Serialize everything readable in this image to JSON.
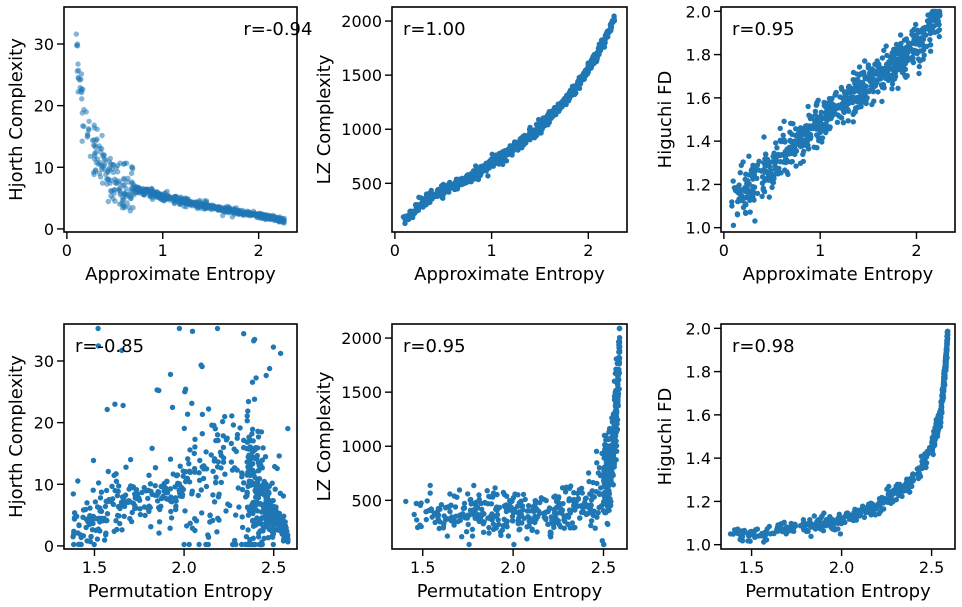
{
  "chart_data": [
    {
      "type": "scatter",
      "xlabel": "Approximate Entropy",
      "ylabel": "Hjorth Complexity",
      "annotation": "r=-0.94",
      "annotation_pos": "top-right",
      "xlim": [
        -0.03,
        2.4
      ],
      "ylim": [
        -0.5,
        36
      ],
      "xticks": [
        0,
        1,
        2
      ],
      "yticks": [
        0,
        10,
        20,
        30
      ],
      "marker_alpha": 0.55,
      "series": [
        {
          "color": "#1f77b4",
          "shape": "power-decay",
          "x": [
            0.08,
            0.1,
            0.12,
            0.15,
            0.2,
            0.25,
            0.3,
            0.35,
            0.4,
            0.45,
            0.5,
            0.6,
            0.8,
            1.0,
            1.2,
            1.5,
            1.8,
            2.0,
            2.2,
            2.27
          ],
          "y": [
            34.5,
            29,
            26,
            22,
            17,
            14,
            12,
            11,
            10,
            8.5,
            7.5,
            7,
            6.2,
            5.4,
            4.5,
            3.6,
            2.7,
            2.2,
            1.6,
            1.3
          ]
        }
      ]
    },
    {
      "type": "scatter",
      "xlabel": "Approximate Entropy",
      "ylabel": "LZ Complexity",
      "annotation": "r=1.00",
      "annotation_pos": "top-left",
      "xlim": [
        -0.03,
        2.4
      ],
      "ylim": [
        50,
        2130
      ],
      "xticks": [
        0,
        1,
        2
      ],
      "yticks": [
        500,
        1000,
        1500,
        2000
      ],
      "marker_alpha": 1,
      "series": [
        {
          "color": "#1f77b4",
          "shape": "convex-rise",
          "x": [
            0.08,
            0.3,
            0.5,
            0.8,
            1.0,
            1.2,
            1.5,
            1.8,
            2.0,
            2.2,
            2.27
          ],
          "y": [
            140,
            330,
            440,
            560,
            690,
            800,
            1020,
            1300,
            1550,
            1880,
            2050
          ]
        }
      ]
    },
    {
      "type": "scatter",
      "xlabel": "Approximate Entropy",
      "ylabel": "Higuchi FD",
      "annotation": "r=0.95",
      "annotation_pos": "top-left",
      "xlim": [
        -0.03,
        2.4
      ],
      "ylim": [
        0.98,
        2.02
      ],
      "xticks": [
        0,
        1,
        2
      ],
      "yticks": [
        1.0,
        1.2,
        1.4,
        1.6,
        1.8,
        2.0
      ],
      "marker_alpha": 1,
      "series": [
        {
          "color": "#1f77b4",
          "shape": "broad-band",
          "x": [
            0.08,
            0.3,
            0.5,
            0.8,
            1.0,
            1.3,
            1.6,
            1.9,
            2.1,
            2.25
          ],
          "y": [
            1.1,
            1.2,
            1.3,
            1.4,
            1.5,
            1.6,
            1.7,
            1.8,
            1.9,
            1.98
          ]
        }
      ]
    },
    {
      "type": "scatter",
      "xlabel": "Permutation Entropy",
      "ylabel": "Hjorth Complexity",
      "annotation": "r=-0.85",
      "annotation_pos": "top-left",
      "xlim": [
        1.33,
        2.63
      ],
      "ylim": [
        -0.5,
        36
      ],
      "xticks": [
        1.5,
        2.0,
        2.5
      ],
      "yticks": [
        0,
        10,
        20,
        30
      ],
      "marker_alpha": 1,
      "series": [
        {
          "color": "#1f77b4",
          "shape": "rise-peak-drop",
          "x": [
            1.38,
            1.5,
            1.7,
            1.9,
            2.1,
            2.25,
            2.35,
            2.45,
            2.55,
            2.58
          ],
          "y": [
            2.5,
            5,
            7,
            8.5,
            10,
            12,
            10,
            7,
            3,
            1.5
          ]
        }
      ]
    },
    {
      "type": "scatter",
      "xlabel": "Permutation Entropy",
      "ylabel": "LZ Complexity",
      "annotation": "r=0.95",
      "annotation_pos": "top-left",
      "xlim": [
        1.33,
        2.63
      ],
      "ylim": [
        50,
        2130
      ],
      "xticks": [
        1.5,
        2.0,
        2.5
      ],
      "yticks": [
        500,
        1000,
        1500,
        2000
      ],
      "marker_alpha": 1,
      "series": [
        {
          "color": "#1f77b4",
          "shape": "flat-then-vertical",
          "x": [
            1.38,
            1.6,
            1.8,
            2.0,
            2.2,
            2.4,
            2.5,
            2.55,
            2.58,
            2.59
          ],
          "y": [
            380,
            380,
            370,
            360,
            380,
            450,
            600,
            900,
            1500,
            2050
          ]
        }
      ]
    },
    {
      "type": "scatter",
      "xlabel": "Permutation Entropy",
      "ylabel": "Higuchi FD",
      "annotation": "r=0.98",
      "annotation_pos": "top-left",
      "xlim": [
        1.33,
        2.63
      ],
      "ylim": [
        0.98,
        2.02
      ],
      "xticks": [
        1.5,
        2.0,
        2.5
      ],
      "yticks": [
        1.0,
        1.2,
        1.4,
        1.6,
        1.8,
        2.0
      ],
      "marker_alpha": 1,
      "series": [
        {
          "color": "#1f77b4",
          "shape": "exponential-rise",
          "x": [
            1.38,
            1.6,
            1.8,
            2.0,
            2.2,
            2.4,
            2.5,
            2.55,
            2.58,
            2.59
          ],
          "y": [
            1.04,
            1.06,
            1.08,
            1.11,
            1.18,
            1.3,
            1.45,
            1.6,
            1.85,
            1.99
          ]
        }
      ]
    }
  ]
}
